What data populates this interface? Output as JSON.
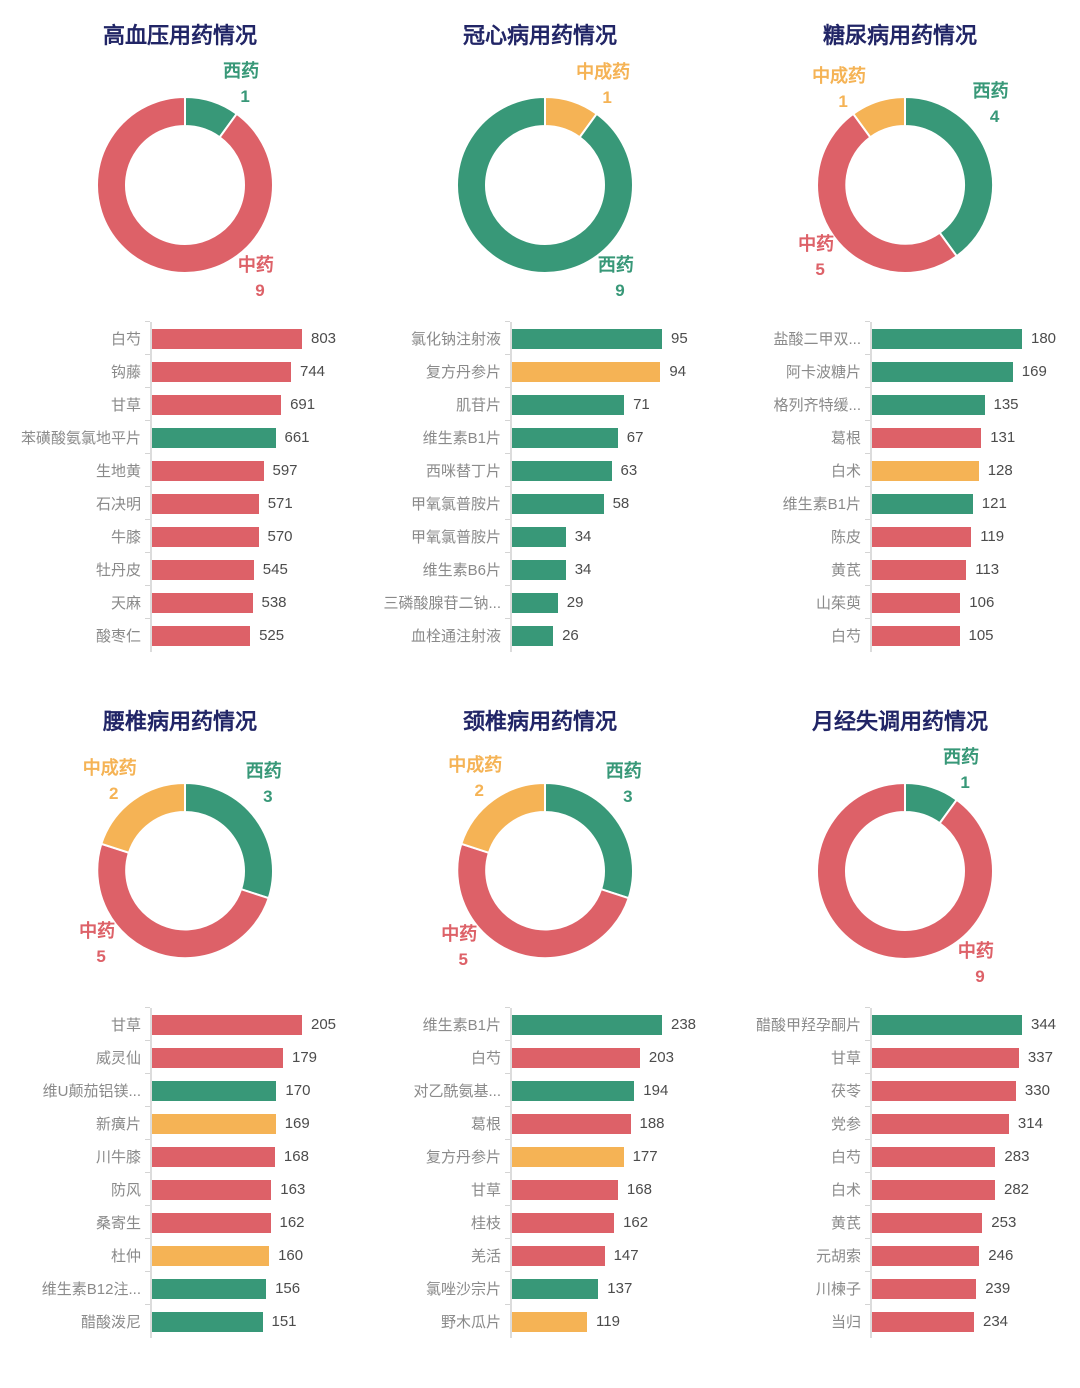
{
  "page": {
    "background": "#ffffff"
  },
  "colors": {
    "red": "#dd6168",
    "green": "#389878",
    "yellow": "#f5b355",
    "title_navy": "#212566",
    "bar_label_gray": "#8a8a8a",
    "bar_value_gray": "#4c4c4c",
    "axis_gray": "#dcdcdc"
  },
  "chart_data": [
    {
      "title": "高血压用药情况",
      "donut": {
        "type": "pie",
        "start_angle_deg": 0,
        "direction": "clockwise",
        "segments": [
          {
            "key": "western",
            "label": "西药",
            "value": 1,
            "color_key": "green",
            "label_angle": 26
          },
          {
            "key": "chinese-herbal",
            "label": "中药",
            "value": 9,
            "color_key": "red",
            "label_angle": 138
          }
        ]
      },
      "bars": {
        "type": "bar",
        "orientation": "horizontal",
        "items": [
          {
            "label": "白芍",
            "value": 803,
            "color_key": "red"
          },
          {
            "label": "钩藤",
            "value": 744,
            "color_key": "red"
          },
          {
            "label": "甘草",
            "value": 691,
            "color_key": "red"
          },
          {
            "label": "苯磺酸氨氯地平片",
            "value": 661,
            "color_key": "green"
          },
          {
            "label": "生地黄",
            "value": 597,
            "color_key": "red"
          },
          {
            "label": "石决明",
            "value": 571,
            "color_key": "red"
          },
          {
            "label": "牛膝",
            "value": 570,
            "color_key": "red"
          },
          {
            "label": "牡丹皮",
            "value": 545,
            "color_key": "red"
          },
          {
            "label": "天麻",
            "value": 538,
            "color_key": "red"
          },
          {
            "label": "酸枣仁",
            "value": 525,
            "color_key": "red"
          }
        ]
      }
    },
    {
      "title": "冠心病用药情况",
      "donut": {
        "type": "pie",
        "start_angle_deg": 0,
        "direction": "clockwise",
        "segments": [
          {
            "key": "chinese-patent",
            "label": "中成药",
            "value": 1,
            "color_key": "yellow",
            "label_angle": 27
          },
          {
            "key": "western",
            "label": "西药",
            "value": 9,
            "color_key": "green",
            "label_angle": 138
          }
        ]
      },
      "bars": {
        "type": "bar",
        "orientation": "horizontal",
        "items": [
          {
            "label": "氯化钠注射液",
            "value": 95,
            "color_key": "green"
          },
          {
            "label": "复方丹参片",
            "value": 94,
            "color_key": "yellow"
          },
          {
            "label": "肌苷片",
            "value": 71,
            "color_key": "green"
          },
          {
            "label": "维生素B1片",
            "value": 67,
            "color_key": "green"
          },
          {
            "label": "西咪替丁片",
            "value": 63,
            "color_key": "green"
          },
          {
            "label": "甲氧氯普胺片",
            "value": 58,
            "color_key": "green"
          },
          {
            "label": "甲氧氯普胺片",
            "value": 34,
            "color_key": "green"
          },
          {
            "label": "维生素B6片",
            "value": 34,
            "color_key": "green"
          },
          {
            "label": "三磷酸腺苷二钠...",
            "value": 29,
            "color_key": "green"
          },
          {
            "label": "血栓通注射液",
            "value": 26,
            "color_key": "green"
          }
        ]
      }
    },
    {
      "title": "糖尿病用药情况",
      "donut": {
        "type": "pie",
        "start_angle_deg": 0,
        "direction": "clockwise",
        "segments": [
          {
            "key": "western",
            "label": "西药",
            "value": 4,
            "color_key": "green",
            "label_angle": 42
          },
          {
            "key": "chinese-herbal",
            "label": "中药",
            "value": 5,
            "color_key": "red",
            "label_angle": 237
          },
          {
            "key": "chinese-patent",
            "label": "中成药",
            "value": 1,
            "color_key": "yellow",
            "label_angle": 329
          }
        ]
      },
      "bars": {
        "type": "bar",
        "orientation": "horizontal",
        "items": [
          {
            "label": "盐酸二甲双...",
            "value": 180,
            "color_key": "green"
          },
          {
            "label": "阿卡波糖片",
            "value": 169,
            "color_key": "green"
          },
          {
            "label": "格列齐特缓...",
            "value": 135,
            "color_key": "green"
          },
          {
            "label": "葛根",
            "value": 131,
            "color_key": "red"
          },
          {
            "label": "白术",
            "value": 128,
            "color_key": "yellow"
          },
          {
            "label": "维生素B1片",
            "value": 121,
            "color_key": "green"
          },
          {
            "label": "陈皮",
            "value": 119,
            "color_key": "red"
          },
          {
            "label": "黄芪",
            "value": 113,
            "color_key": "red"
          },
          {
            "label": "山茱萸",
            "value": 106,
            "color_key": "red"
          },
          {
            "label": "白芍",
            "value": 105,
            "color_key": "red"
          }
        ]
      }
    },
    {
      "title": "腰椎病用药情况",
      "donut": {
        "type": "pie",
        "start_angle_deg": 0,
        "direction": "clockwise",
        "segments": [
          {
            "key": "western",
            "label": "西药",
            "value": 3,
            "color_key": "green",
            "label_angle": 38
          },
          {
            "key": "chinese-herbal",
            "label": "中药",
            "value": 5,
            "color_key": "red",
            "label_angle": 236
          },
          {
            "key": "chinese-patent",
            "label": "中成药",
            "value": 2,
            "color_key": "yellow",
            "label_angle": 324
          }
        ]
      },
      "bars": {
        "type": "bar",
        "orientation": "horizontal",
        "items": [
          {
            "label": "甘草",
            "value": 205,
            "color_key": "red"
          },
          {
            "label": "威灵仙",
            "value": 179,
            "color_key": "red"
          },
          {
            "label": "维U颠茄铝镁...",
            "value": 170,
            "color_key": "green"
          },
          {
            "label": "新癀片",
            "value": 169,
            "color_key": "yellow"
          },
          {
            "label": "川牛膝",
            "value": 168,
            "color_key": "red"
          },
          {
            "label": "防风",
            "value": 163,
            "color_key": "red"
          },
          {
            "label": "桑寄生",
            "value": 162,
            "color_key": "red"
          },
          {
            "label": "杜仲",
            "value": 160,
            "color_key": "yellow"
          },
          {
            "label": "维生素B12注...",
            "value": 156,
            "color_key": "green"
          },
          {
            "label": "醋酸泼尼",
            "value": 151,
            "color_key": "green"
          }
        ]
      }
    },
    {
      "title": "颈椎病用药情况",
      "donut": {
        "type": "pie",
        "start_angle_deg": 0,
        "direction": "clockwise",
        "segments": [
          {
            "key": "western",
            "label": "西药",
            "value": 3,
            "color_key": "green",
            "label_angle": 38
          },
          {
            "key": "chinese-herbal",
            "label": "中药",
            "value": 5,
            "color_key": "red",
            "label_angle": 234
          },
          {
            "key": "chinese-patent",
            "label": "中成药",
            "value": 2,
            "color_key": "yellow",
            "label_angle": 327
          }
        ]
      },
      "bars": {
        "type": "bar",
        "orientation": "horizontal",
        "items": [
          {
            "label": "维生素B1片",
            "value": 238,
            "color_key": "green"
          },
          {
            "label": "白芍",
            "value": 203,
            "color_key": "red"
          },
          {
            "label": "对乙酰氨基...",
            "value": 194,
            "color_key": "green"
          },
          {
            "label": "葛根",
            "value": 188,
            "color_key": "red"
          },
          {
            "label": "复方丹参片",
            "value": 177,
            "color_key": "yellow"
          },
          {
            "label": "甘草",
            "value": 168,
            "color_key": "red"
          },
          {
            "label": "桂枝",
            "value": 162,
            "color_key": "red"
          },
          {
            "label": "羌活",
            "value": 147,
            "color_key": "red"
          },
          {
            "label": "氯唑沙宗片",
            "value": 137,
            "color_key": "green"
          },
          {
            "label": "野木瓜片",
            "value": 119,
            "color_key": "yellow"
          }
        ]
      }
    },
    {
      "title": "月经失调用药情况",
      "donut": {
        "type": "pie",
        "start_angle_deg": 0,
        "direction": "clockwise",
        "segments": [
          {
            "key": "western",
            "label": "西药",
            "value": 1,
            "color_key": "green",
            "label_angle": 26
          },
          {
            "key": "chinese-herbal",
            "label": "中药",
            "value": 9,
            "color_key": "red",
            "label_angle": 138
          }
        ]
      },
      "bars": {
        "type": "bar",
        "orientation": "horizontal",
        "items": [
          {
            "label": "醋酸甲羟孕酮片",
            "value": 344,
            "color_key": "green"
          },
          {
            "label": "甘草",
            "value": 337,
            "color_key": "red"
          },
          {
            "label": "茯苓",
            "value": 330,
            "color_key": "red"
          },
          {
            "label": "党参",
            "value": 314,
            "color_key": "red"
          },
          {
            "label": "白芍",
            "value": 283,
            "color_key": "red"
          },
          {
            "label": "白术",
            "value": 282,
            "color_key": "red"
          },
          {
            "label": "黄芪",
            "value": 253,
            "color_key": "red"
          },
          {
            "label": "元胡索",
            "value": 246,
            "color_key": "red"
          },
          {
            "label": "川楝子",
            "value": 239,
            "color_key": "red"
          },
          {
            "label": "当归",
            "value": 234,
            "color_key": "red"
          }
        ]
      }
    }
  ]
}
